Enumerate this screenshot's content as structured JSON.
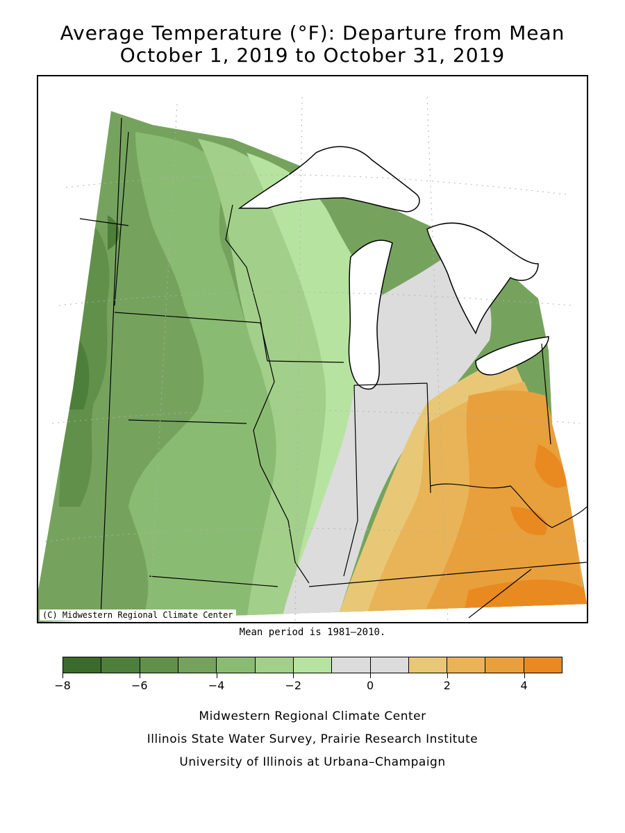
{
  "title": {
    "line1": "Average Temperature (°F): Departure from Mean",
    "line2": "October 1, 2019 to October 31, 2019"
  },
  "map": {
    "copyright": "(C) Midwestern Regional Climate Center",
    "mean_period_note": "Mean period is 1981–2010.",
    "region": "US Midwest",
    "pattern": "negative departures (green) across the west and north, near-normal band (gray) from lower Michigan through Indiana, positive departures (orange) across Ohio, Kentucky and the southeast"
  },
  "legend": {
    "bins": [
      {
        "min": -8,
        "max": -7,
        "color": "#3a6b2a"
      },
      {
        "min": -7,
        "max": -6,
        "color": "#4e7f3a"
      },
      {
        "min": -6,
        "max": -5,
        "color": "#61904b"
      },
      {
        "min": -5,
        "max": -4,
        "color": "#75a35e"
      },
      {
        "min": -4,
        "max": -3,
        "color": "#8abb72"
      },
      {
        "min": -3,
        "max": -2,
        "color": "#a2cf8a"
      },
      {
        "min": -2,
        "max": -1,
        "color": "#b7e3a0"
      },
      {
        "min": -1,
        "max": 0,
        "color": "#dcdcdc"
      },
      {
        "min": 0,
        "max": 1,
        "color": "#dcdcdc"
      },
      {
        "min": 1,
        "max": 2,
        "color": "#e8c877"
      },
      {
        "min": 2,
        "max": 3,
        "color": "#e8b457"
      },
      {
        "min": 3,
        "max": 4,
        "color": "#e8a03c"
      },
      {
        "min": 4,
        "max": 5,
        "color": "#e88a20"
      }
    ],
    "tick_values": [
      -8,
      -6,
      -4,
      -2,
      0,
      2,
      4
    ],
    "tick_labels": [
      "−8",
      "−6",
      "−4",
      "−2",
      "0",
      "2",
      "4"
    ]
  },
  "footer": {
    "line1": "Midwestern Regional Climate Center",
    "line2": "Illinois State Water Survey, Prairie Research Institute",
    "line3": "University of Illinois at Urbana–Champaign"
  }
}
